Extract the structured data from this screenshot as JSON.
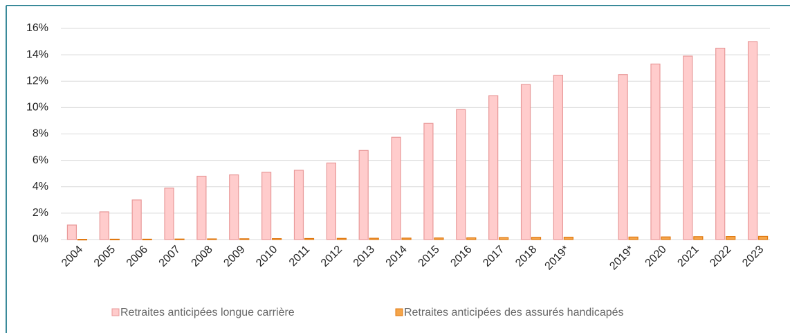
{
  "chart_data": {
    "type": "bar",
    "categories": [
      "2004",
      "2005",
      "2006",
      "2007",
      "2008",
      "2009",
      "2010",
      "2011",
      "2012",
      "2013",
      "2014",
      "2015",
      "2016",
      "2017",
      "2018",
      "2019*",
      null,
      "2019*",
      "2020",
      "2021",
      "2022",
      "2023"
    ],
    "series": [
      {
        "name": "Retraites anticipées longue carrière",
        "color": "#ffcccc",
        "stroke": "#e89898",
        "values": [
          1.1,
          2.1,
          3.0,
          3.9,
          4.8,
          4.9,
          5.1,
          5.25,
          5.8,
          6.75,
          7.75,
          8.8,
          9.85,
          10.9,
          11.75,
          12.45,
          null,
          12.5,
          13.3,
          13.9,
          14.5,
          15.0
        ]
      },
      {
        "name": "Retraites anticipées des assurés handicapés",
        "color": "#f5a54a",
        "stroke": "#e07810",
        "values": [
          0.02,
          0.03,
          0.03,
          0.04,
          0.05,
          0.06,
          0.07,
          0.08,
          0.09,
          0.1,
          0.11,
          0.12,
          0.13,
          0.15,
          0.17,
          0.18,
          null,
          0.19,
          0.2,
          0.22,
          0.23,
          0.24
        ]
      }
    ],
    "ylim": [
      0,
      16
    ],
    "yticks": [
      {
        "value": 0,
        "label": "0%"
      },
      {
        "value": 2,
        "label": "2%"
      },
      {
        "value": 4,
        "label": "4%"
      },
      {
        "value": 6,
        "label": "6%"
      },
      {
        "value": 8,
        "label": "8%"
      },
      {
        "value": 10,
        "label": "10%"
      },
      {
        "value": 12,
        "label": "12%"
      },
      {
        "value": 14,
        "label": "14%"
      },
      {
        "value": 16,
        "label": "16%"
      }
    ],
    "grid": true,
    "legend": "bottom"
  }
}
